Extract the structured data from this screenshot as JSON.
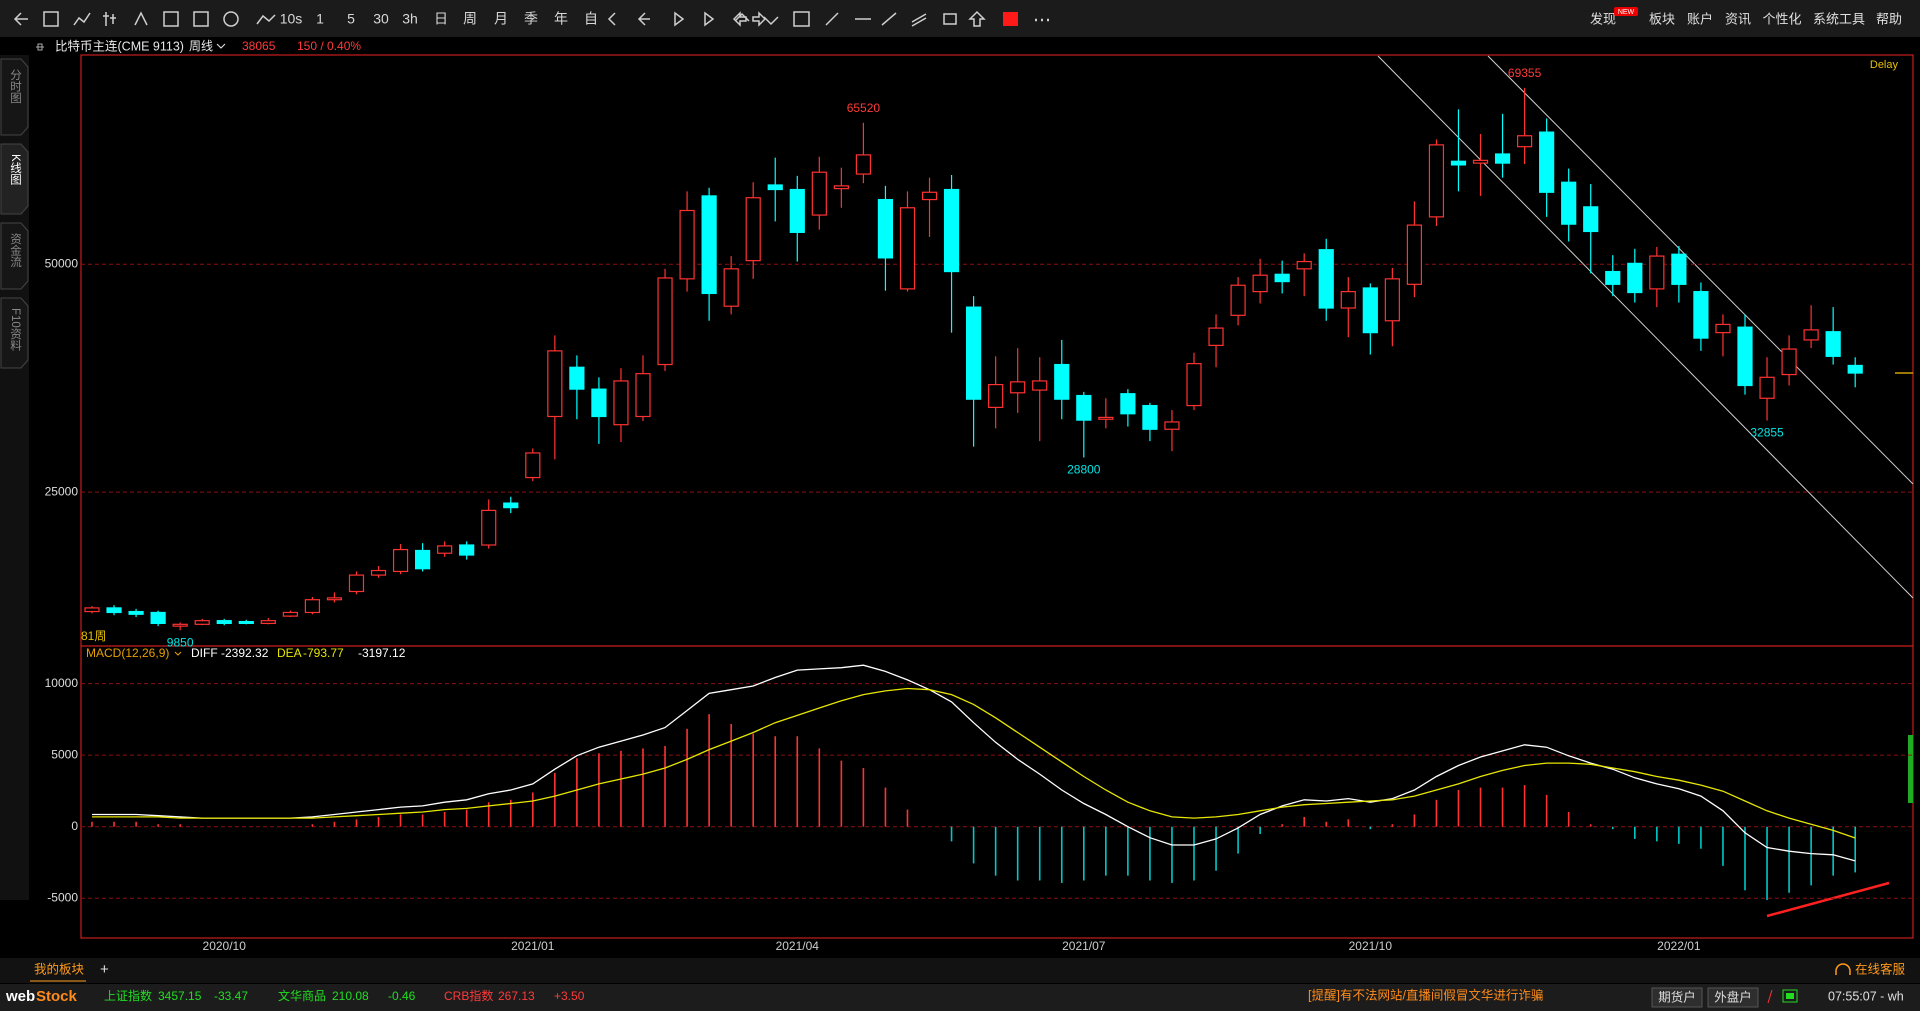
{
  "toolbar": {
    "periods": [
      "10s",
      "1",
      "5",
      "30",
      "3h",
      "日",
      "周",
      "月",
      "季",
      "年",
      "自"
    ]
  },
  "menu": {
    "items": [
      "发现",
      "板块",
      "账户",
      "资讯",
      "个性化",
      "系统工具",
      "帮助"
    ],
    "badge": "NEW"
  },
  "side_tabs": [
    "分时图",
    "K线图",
    "资金流",
    "F10资料"
  ],
  "info": {
    "symbol": "比特币主连(CME 9113)",
    "period": "周线",
    "change": "150 / 0.40%",
    "delay": "Delay"
  },
  "chart_data": [
    {
      "type": "candlestick",
      "bar_count_label": "81周",
      "up_color": "#ff3232",
      "down_color": "#00ffff",
      "grid": true,
      "ylim": [
        8340,
        72850
      ],
      "yticks": [
        25000,
        50000
      ],
      "categories": [
        null,
        null,
        null,
        null,
        null,
        null,
        "2020/10",
        null,
        null,
        null,
        null,
        null,
        null,
        null,
        null,
        null,
        null,
        null,
        null,
        null,
        "2021/01",
        null,
        null,
        null,
        null,
        null,
        null,
        null,
        null,
        null,
        null,
        null,
        "2021/04",
        null,
        null,
        null,
        null,
        null,
        null,
        null,
        null,
        null,
        null,
        null,
        null,
        "2021/07",
        null,
        null,
        null,
        null,
        null,
        null,
        null,
        null,
        null,
        null,
        null,
        null,
        "2021/10",
        null,
        null,
        null,
        null,
        null,
        null,
        null,
        null,
        null,
        null,
        null,
        null,
        null,
        "2022/01",
        null,
        null,
        null,
        null,
        null,
        null,
        null,
        null
      ],
      "open": [
        11900,
        12300,
        11900,
        11800,
        10300,
        10500,
        10900,
        10800,
        10600,
        11400,
        11800,
        13200,
        14100,
        15900,
        16300,
        18600,
        18300,
        19200,
        19200,
        23800,
        26600,
        33300,
        38700,
        36300,
        32400,
        33300,
        39000,
        48400,
        57500,
        45400,
        50400,
        58700,
        58200,
        55400,
        58300,
        59900,
        57100,
        47300,
        57100,
        58200,
        45300,
        34300,
        35900,
        36200,
        39000,
        35600,
        33000,
        35800,
        34500,
        31900,
        34500,
        41100,
        44400,
        47000,
        48900,
        49500,
        51600,
        45200,
        47400,
        43800,
        47800,
        55200,
        61300,
        61100,
        62100,
        62900,
        64500,
        59000,
        56300,
        49200,
        50100,
        47300,
        51100,
        47000,
        42500,
        43100,
        35300,
        37900,
        41700,
        42600,
        38900
      ],
      "high": [
        12500,
        12600,
        12200,
        12000,
        10700,
        11100,
        11100,
        11000,
        11200,
        12000,
        13500,
        14000,
        16300,
        16900,
        19300,
        19400,
        19600,
        19600,
        24200,
        24500,
        29800,
        42200,
        40000,
        37600,
        38600,
        40000,
        49500,
        58000,
        58400,
        50900,
        59000,
        61700,
        59700,
        61800,
        60600,
        65520,
        58600,
        58000,
        59500,
        59800,
        46500,
        39900,
        40800,
        39800,
        41700,
        36000,
        35300,
        36300,
        34800,
        34000,
        40300,
        44500,
        48600,
        50600,
        50400,
        51200,
        52800,
        48600,
        47900,
        49600,
        56900,
        63700,
        67000,
        64300,
        66500,
        69355,
        66000,
        60500,
        58800,
        51000,
        51700,
        51900,
        52000,
        48000,
        44500,
        44500,
        39800,
        42200,
        45500,
        45300,
        39800
      ],
      "low": [
        11700,
        11500,
        11300,
        10300,
        9850,
        10400,
        10400,
        10500,
        10500,
        11300,
        11600,
        12900,
        13800,
        15600,
        16000,
        16300,
        17900,
        17600,
        18800,
        22700,
        26200,
        28600,
        33000,
        30300,
        30500,
        32800,
        38300,
        47000,
        43800,
        44500,
        48400,
        54700,
        50300,
        53800,
        56200,
        58900,
        47100,
        47000,
        53000,
        42500,
        30000,
        32000,
        33700,
        30600,
        33000,
        28800,
        32000,
        32200,
        30600,
        29500,
        34000,
        38700,
        43300,
        45700,
        46800,
        46500,
        43800,
        42000,
        40100,
        41000,
        46400,
        54200,
        58000,
        57500,
        59500,
        61000,
        55200,
        52500,
        49000,
        46500,
        45800,
        45300,
        45800,
        40500,
        39900,
        35700,
        32855,
        36700,
        40800,
        39000,
        36500
      ],
      "close": [
        12300,
        11800,
        11600,
        10600,
        10500,
        10900,
        10600,
        10600,
        10900,
        11800,
        13200,
        13400,
        15900,
        16400,
        18700,
        16600,
        19100,
        18100,
        23000,
        23300,
        29300,
        40500,
        36300,
        33300,
        37200,
        38000,
        48500,
        55900,
        46800,
        49500,
        57300,
        58200,
        53500,
        60100,
        58600,
        62000,
        50700,
        56200,
        57900,
        49200,
        35200,
        36800,
        37100,
        37200,
        35200,
        32900,
        33200,
        33600,
        31900,
        32700,
        39100,
        43000,
        47700,
        48800,
        48100,
        50300,
        45200,
        47000,
        42500,
        48400,
        54300,
        63100,
        60900,
        61400,
        61100,
        64100,
        57900,
        54400,
        53600,
        47800,
        46900,
        50900,
        47800,
        41900,
        43400,
        36700,
        37600,
        40700,
        42800,
        39900,
        38065
      ]
    },
    {
      "type": "macd",
      "title": "MACD(12,26,9)",
      "grid": true,
      "ylim": [
        -7780,
        12560
      ],
      "yticks": [
        -5000,
        0,
        5000,
        10000
      ],
      "series": [
        {
          "name": "DIFF",
          "color": "#ffffff",
          "values": [
            855,
            855,
            855,
            770,
            684,
            598,
            598,
            598,
            598,
            598,
            684,
            855,
            1026,
            1197,
            1368,
            1454,
            1710,
            1881,
            2308,
            2565,
            2992,
            4018,
            4959,
            5557,
            5985,
            6412,
            6925,
            8122,
            9319,
            9575,
            9832,
            10430,
            10943,
            11029,
            11114,
            11285,
            10857,
            10259,
            9575,
            8720,
            7267,
            5899,
            4702,
            3676,
            2565,
            1624,
            855,
            0,
            -770,
            -1282,
            -1282,
            -855,
            -85,
            855,
            1454,
            1881,
            1795,
            1966,
            1710,
            1966,
            2565,
            3505,
            4274,
            4873,
            5300,
            5727,
            5556,
            4958,
            4445,
            4018,
            3419,
            2992,
            2650,
            2137,
            1111,
            -427,
            -1453,
            -1710,
            -1880,
            -1966,
            -2392.32
          ]
        },
        {
          "name": "DEA",
          "color": "#e6e600",
          "values": [
            684,
            684,
            684,
            684,
            598,
            598,
            598,
            598,
            598,
            598,
            598,
            684,
            770,
            855,
            940,
            1026,
            1197,
            1282,
            1453,
            1624,
            1795,
            2137,
            2565,
            2992,
            3334,
            3676,
            4103,
            4702,
            5386,
            5984,
            6583,
            7267,
            7780,
            8293,
            8806,
            9234,
            9490,
            9661,
            9576,
            9234,
            8550,
            7609,
            6583,
            5557,
            4531,
            3505,
            2565,
            1710,
            1111,
            684,
            598,
            684,
            855,
            1111,
            1368,
            1539,
            1624,
            1710,
            1795,
            1881,
            2137,
            2565,
            2992,
            3505,
            3932,
            4274,
            4445,
            4445,
            4360,
            4103,
            3847,
            3505,
            3249,
            2907,
            2479,
            1795,
            1111,
            598,
            171,
            -256,
            -793.77
          ]
        }
      ],
      "histogram": {
        "up_color": "#ff3232",
        "down_color": "#00c8c8",
        "values": [
          342,
          342,
          342,
          172,
          172,
          0,
          0,
          0,
          0,
          0,
          172,
          342,
          512,
          684,
          856,
          856,
          1026,
          1198,
          1710,
          1882,
          2394,
          3762,
          4788,
          5130,
          5302,
          5472,
          5644,
          6840,
          7866,
          7182,
          6498,
          6326,
          6326,
          5472,
          4616,
          4102,
          2734,
          1196,
          -2,
          -1028,
          -2566,
          -3420,
          -3762,
          -3762,
          -3932,
          -3762,
          -3420,
          -3420,
          -3762,
          -3932,
          -3760,
          -3078,
          -1880,
          -512,
          172,
          684,
          342,
          512,
          -170,
          170,
          856,
          1880,
          2564,
          2736,
          2736,
          2906,
          2222,
          1026,
          170,
          -170,
          -856,
          -1026,
          -1198,
          -1540,
          -2736,
          -4444,
          -5128,
          -4616,
          -4102,
          -3420,
          -3197.12
        ]
      }
    }
  ],
  "footer": {
    "tab": "我的板块",
    "add": "+",
    "service": "在线客服",
    "logo": [
      "web",
      "Stock"
    ],
    "indices": [
      {
        "name": "上证指数",
        "value": "3457.15",
        "change": "-33.47"
      },
      {
        "name": "文华商品",
        "value": "210.08",
        "change": "-0.46"
      },
      {
        "name": "CRB指数",
        "value": "267.13",
        "change": "+3.50"
      }
    ],
    "notice": "[提醒]有不法网站/直播间假冒文华进行诈骗",
    "buttons": [
      "期货户",
      "外盘户"
    ],
    "clock": "07:55:07 - wh"
  }
}
